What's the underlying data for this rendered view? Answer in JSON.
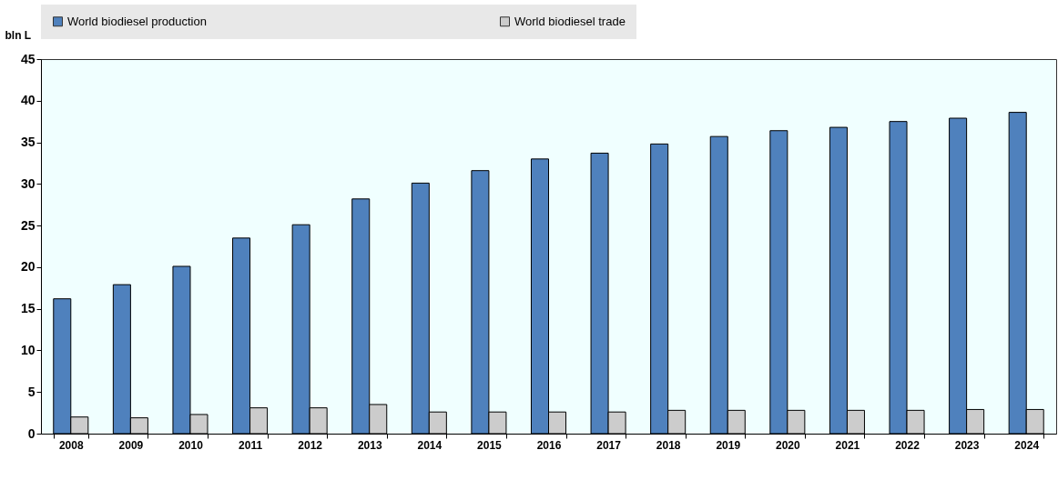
{
  "chart_data": {
    "type": "bar",
    "ylabel": "bln L",
    "categories": [
      "2008",
      "2009",
      "2010",
      "2011",
      "2012",
      "2013",
      "2014",
      "2015",
      "2016",
      "2017",
      "2018",
      "2019",
      "2020",
      "2021",
      "2022",
      "2023",
      "2024"
    ],
    "series": [
      {
        "name": "World biodiesel production",
        "color": "#4f81bd",
        "values": [
          16.2,
          17.9,
          20.1,
          23.5,
          25.1,
          28.2,
          30.1,
          31.6,
          33.0,
          33.7,
          34.8,
          35.7,
          36.4,
          36.8,
          37.5,
          37.9,
          38.6
        ]
      },
      {
        "name": "World biodiesel trade",
        "color": "#cccccc",
        "values": [
          2.0,
          1.9,
          2.3,
          3.1,
          3.1,
          3.5,
          2.6,
          2.6,
          2.6,
          2.6,
          2.8,
          2.8,
          2.8,
          2.8,
          2.8,
          2.9,
          2.9
        ]
      }
    ],
    "ylim": [
      0,
      45
    ],
    "yticks": [
      0,
      5,
      10,
      15,
      20,
      25,
      30,
      35,
      40,
      45
    ],
    "grid": false,
    "legend": "top"
  }
}
